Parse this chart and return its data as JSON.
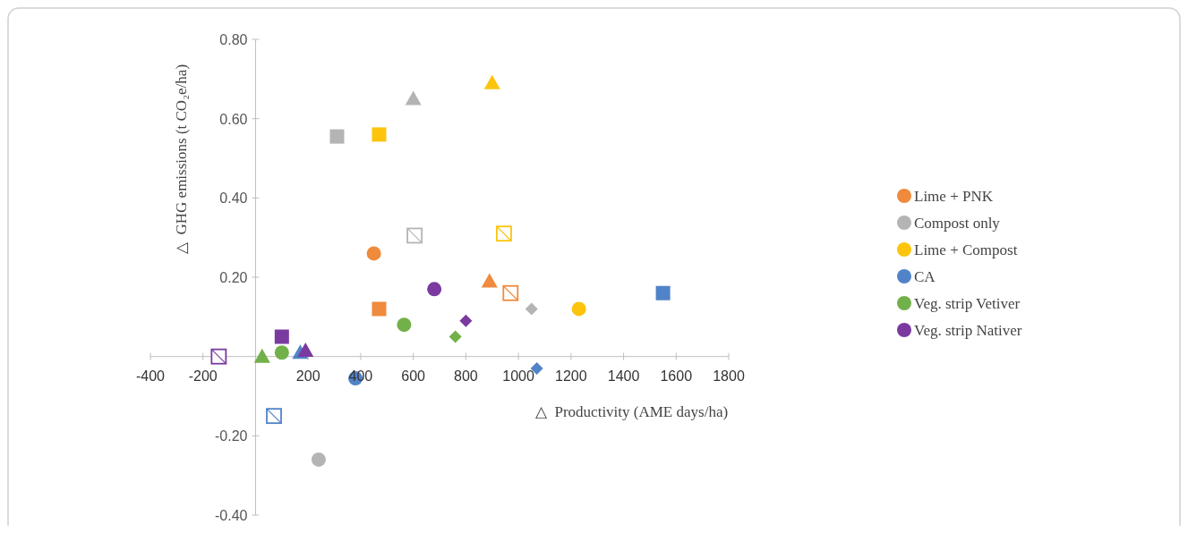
{
  "chart_data": {
    "type": "scatter",
    "xlabel": "△  Productivity (AME days/ha)",
    "ylabel": "△  GHG emissions (t CO₂e/ha)",
    "xlim": [
      -400,
      1800
    ],
    "xticks": [
      -400,
      -200,
      200,
      400,
      600,
      800,
      1000,
      1200,
      1400,
      1600,
      1800
    ],
    "ylim": [
      -0.4,
      0.8
    ],
    "yticks": [
      {
        "value": -0.4,
        "label": "-0.40"
      },
      {
        "value": -0.2,
        "label": "-0.20"
      },
      {
        "value": 0.2,
        "label": "0.20"
      },
      {
        "value": 0.4,
        "label": "0.40"
      },
      {
        "value": 0.6,
        "label": "0.60"
      },
      {
        "value": 0.8,
        "label": "0.80"
      }
    ],
    "grid": false,
    "legend": "right",
    "series": [
      {
        "name": "Lime + PNK",
        "color": "#f08a3c",
        "marker": "circle",
        "x": [
          450
        ],
        "values": [
          0.26
        ]
      },
      {
        "name": "Compost only",
        "color": "#b4b4b4",
        "marker": "circle",
        "x": [
          240
        ],
        "values": [
          -0.26
        ]
      },
      {
        "name": "Lime + Compost",
        "color": "#fcc40c",
        "marker": "circle",
        "x": [
          1230
        ],
        "values": [
          0.12
        ]
      },
      {
        "name": "CA",
        "color": "#5183c8",
        "marker": "circle",
        "x": [
          380
        ],
        "values": [
          -0.055
        ]
      },
      {
        "name": "Veg. strip Vetiver",
        "color": "#72b04a",
        "marker": "circle",
        "x": [
          565,
          100
        ],
        "values": [
          0.08,
          0.01
        ]
      },
      {
        "name": "Veg. strip Nativer",
        "color": "#7a3aa0",
        "marker": "circle",
        "x": [
          680
        ],
        "values": [
          0.17
        ]
      },
      {
        "color": "#f08a3c",
        "marker": "square",
        "x": [
          470
        ],
        "values": [
          0.12
        ]
      },
      {
        "color": "#f08a3c",
        "marker": "triangle",
        "x": [
          890
        ],
        "values": [
          0.19
        ]
      },
      {
        "color": "#f08a3c",
        "marker": "square-open",
        "x": [
          970
        ],
        "values": [
          0.16
        ]
      },
      {
        "color": "#b4b4b4",
        "marker": "square",
        "x": [
          310
        ],
        "values": [
          0.555
        ]
      },
      {
        "color": "#b4b4b4",
        "marker": "triangle",
        "x": [
          600
        ],
        "values": [
          0.65
        ]
      },
      {
        "color": "#b4b4b4",
        "marker": "square-open",
        "x": [
          605
        ],
        "values": [
          0.305
        ]
      },
      {
        "color": "#b4b4b4",
        "marker": "diamond",
        "x": [
          1050
        ],
        "values": [
          0.12
        ]
      },
      {
        "color": "#fcc40c",
        "marker": "square",
        "x": [
          470
        ],
        "values": [
          0.56
        ]
      },
      {
        "color": "#fcc40c",
        "marker": "triangle",
        "x": [
          900
        ],
        "values": [
          0.69
        ]
      },
      {
        "color": "#fcc40c",
        "marker": "square-open",
        "x": [
          945
        ],
        "values": [
          0.31
        ]
      },
      {
        "color": "#5183c8",
        "marker": "square",
        "x": [
          1550
        ],
        "values": [
          0.16
        ]
      },
      {
        "color": "#5183c8",
        "marker": "diamond",
        "x": [
          1070
        ],
        "values": [
          -0.03
        ]
      },
      {
        "color": "#5183c8",
        "marker": "triangle",
        "x": [
          170
        ],
        "values": [
          0.01
        ]
      },
      {
        "color": "#5183c8",
        "marker": "square-open",
        "x": [
          70
        ],
        "values": [
          -0.15
        ]
      },
      {
        "color": "#72b04a",
        "marker": "triangle",
        "x": [
          25
        ],
        "values": [
          0.0
        ]
      },
      {
        "color": "#72b04a",
        "marker": "diamond",
        "x": [
          760
        ],
        "values": [
          0.05
        ]
      },
      {
        "color": "#7a3aa0",
        "marker": "square",
        "x": [
          100
        ],
        "values": [
          0.05
        ]
      },
      {
        "color": "#7a3aa0",
        "marker": "triangle",
        "x": [
          190
        ],
        "values": [
          0.015
        ]
      },
      {
        "color": "#7a3aa0",
        "marker": "diamond",
        "x": [
          800
        ],
        "values": [
          0.09
        ]
      },
      {
        "color": "#7a3aa0",
        "marker": "square-open",
        "x": [
          -140
        ],
        "values": [
          0.0
        ]
      }
    ]
  }
}
